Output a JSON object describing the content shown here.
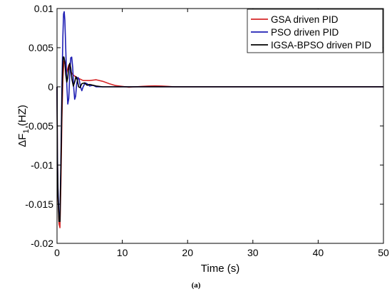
{
  "chart_data": {
    "type": "line",
    "xlabel": "Time (s)",
    "ylabel": "ΔF",
    "ylabel_subscript": "1",
    "ylabel_unit": " (HZ)",
    "caption": "(a)",
    "xlim": [
      0,
      50
    ],
    "ylim": [
      -0.02,
      0.01
    ],
    "xticks": [
      0,
      10,
      20,
      30,
      40,
      50
    ],
    "xtick_labels": [
      "0",
      "10",
      "20",
      "30",
      "40",
      "50"
    ],
    "yticks": [
      -0.02,
      -0.015,
      -0.01,
      -0.005,
      0,
      0.005,
      0.01
    ],
    "ytick_labels": [
      "-0.02",
      "-0.015",
      "-0.01",
      "-0.005",
      "0",
      "0.005",
      "0.01"
    ],
    "grid": false,
    "legend_position": "top-right",
    "series": [
      {
        "name": "GSA driven PID",
        "color": "#d62728",
        "x": [
          0,
          0.05,
          0.15,
          0.3,
          0.45,
          0.6,
          0.75,
          0.9,
          1.05,
          1.2,
          1.4,
          1.6,
          1.8,
          2.0,
          2.2,
          2.5,
          3.0,
          3.5,
          4.0,
          5.0,
          6.0,
          7.0,
          8.0,
          9.0,
          10.0,
          11.0,
          12.0,
          13.0,
          14.0,
          15.0,
          16.0,
          17.0,
          18.0,
          20.0,
          25.0,
          30.0,
          40.0,
          50.0
        ],
        "y": [
          0,
          -0.008,
          -0.014,
          -0.0175,
          -0.018,
          -0.012,
          -0.004,
          0.001,
          0.0033,
          0.0031,
          0.0016,
          0.0022,
          0.0028,
          0.002,
          0.0018,
          0.0015,
          0.0012,
          0.001,
          0.0008,
          0.0008,
          0.0009,
          0.0007,
          0.0004,
          0.00015,
          5e-05,
          -5e-05,
          0.0,
          5e-05,
          0.0001,
          0.00012,
          0.0001,
          5e-05,
          0.0,
          0.0,
          0.0,
          0.0,
          0.0,
          0.0
        ]
      },
      {
        "name": "PSO driven PID",
        "color": "#1f1fb4",
        "x": [
          0,
          0.05,
          0.15,
          0.3,
          0.45,
          0.6,
          0.75,
          0.9,
          1.0,
          1.1,
          1.2,
          1.35,
          1.5,
          1.65,
          1.8,
          1.95,
          2.1,
          2.25,
          2.4,
          2.55,
          2.7,
          2.85,
          3.0,
          3.2,
          3.4,
          3.6,
          3.8,
          4.0,
          4.3,
          4.6,
          5.0,
          5.5,
          6.0,
          7.0,
          8.0,
          10.0,
          15.0,
          20.0,
          30.0,
          40.0,
          50.0
        ],
        "y": [
          0,
          -0.008,
          -0.013,
          -0.0165,
          -0.0165,
          -0.009,
          0.0,
          0.0065,
          0.0093,
          0.0096,
          0.0085,
          0.0045,
          0.0002,
          -0.0022,
          -0.0015,
          0.0015,
          0.0037,
          0.0038,
          0.0025,
          0.0,
          -0.0016,
          -0.0012,
          0.0003,
          0.0012,
          0.0009,
          0.0,
          -0.0005,
          0.0,
          0.0005,
          0.0004,
          0.0001,
          0.0002,
          0.0,
          0.0,
          0.0,
          0.0,
          0.0,
          0.0,
          0.0,
          0.0,
          0.0
        ]
      },
      {
        "name": "IGSA-BPSO driven PID",
        "color": "#000000",
        "x": [
          0,
          0.05,
          0.15,
          0.3,
          0.45,
          0.6,
          0.75,
          0.85,
          0.95,
          1.05,
          1.2,
          1.35,
          1.5,
          1.65,
          1.8,
          1.95,
          2.1,
          2.3,
          2.5,
          2.7,
          2.9,
          3.1,
          3.3,
          3.5,
          3.8,
          4.2,
          4.6,
          5.0,
          5.5,
          6.0,
          7.0,
          8.0,
          10.0,
          15.0,
          20.0,
          30.0,
          40.0,
          50.0
        ],
        "y": [
          0,
          -0.009,
          -0.014,
          -0.0172,
          -0.0172,
          -0.01,
          -0.002,
          0.002,
          0.0038,
          0.0038,
          0.0032,
          0.0015,
          0.0006,
          0.0012,
          0.0025,
          0.003,
          0.0024,
          0.0009,
          0.0001,
          0.0006,
          0.0013,
          0.0009,
          0.0,
          -0.0001,
          0.0004,
          0.0005,
          0.0002,
          0.0003,
          0.0002,
          0.0001,
          0.0,
          0.0,
          0.0,
          0.0,
          0.0,
          0.0,
          0.0,
          0.0
        ]
      }
    ]
  }
}
